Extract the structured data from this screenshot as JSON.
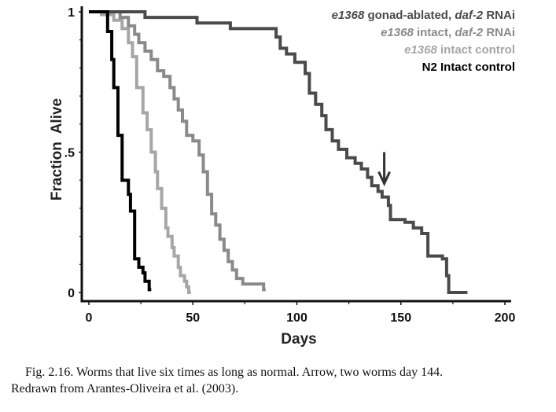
{
  "chart_data": {
    "type": "line",
    "step": true,
    "title": "",
    "xlabel": "Days",
    "ylabel": "Fraction  Alive",
    "xlim": [
      0,
      200
    ],
    "ylim": [
      0,
      1
    ],
    "x_ticks": [
      0,
      50,
      100,
      150,
      200
    ],
    "x_minor_ticks": [
      25,
      75,
      125,
      175
    ],
    "x_tick_labels": [
      "0",
      "50",
      "100",
      "150",
      "200"
    ],
    "y_ticks": [
      0,
      0.5,
      1
    ],
    "y_minor_ticks": [
      0.1,
      0.2,
      0.3,
      0.4,
      0.6,
      0.7,
      0.8,
      0.9
    ],
    "y_tick_labels": [
      "0",
      ".5",
      "1"
    ],
    "grid": false,
    "legend_position": "top-right",
    "series": [
      {
        "name": "e1368 gonad-ablated, daf-2 RNAi",
        "legend_parts": [
          {
            "text": "e1368",
            "italic": true
          },
          {
            "text": " gonad-ablated, ",
            "italic": false
          },
          {
            "text": "daf-2",
            "italic": true
          },
          {
            "text": " RNAi",
            "italic": false
          }
        ],
        "color": "#4a4a4a",
        "x": [
          0,
          27,
          27,
          52,
          52,
          68,
          68,
          90,
          90,
          92,
          92,
          95,
          95,
          99,
          99,
          104,
          104,
          106,
          106,
          109,
          109,
          112,
          112,
          114,
          114,
          117,
          117,
          120,
          120,
          124,
          124,
          128,
          128,
          131,
          131,
          134,
          134,
          136,
          136,
          139,
          139,
          141,
          141,
          144,
          144,
          145,
          145,
          152,
          152,
          156,
          156,
          160,
          160,
          163,
          163,
          170,
          170,
          172,
          172,
          173,
          173,
          182
        ],
        "y": [
          1,
          1,
          0.98,
          0.98,
          0.96,
          0.96,
          0.94,
          0.94,
          0.91,
          0.91,
          0.87,
          0.87,
          0.85,
          0.85,
          0.82,
          0.82,
          0.78,
          0.78,
          0.71,
          0.71,
          0.67,
          0.67,
          0.63,
          0.63,
          0.58,
          0.58,
          0.54,
          0.54,
          0.51,
          0.51,
          0.48,
          0.48,
          0.46,
          0.46,
          0.44,
          0.44,
          0.41,
          0.41,
          0.38,
          0.38,
          0.36,
          0.36,
          0.34,
          0.34,
          0.31,
          0.31,
          0.26,
          0.26,
          0.25,
          0.25,
          0.23,
          0.23,
          0.21,
          0.21,
          0.13,
          0.13,
          0.12,
          0.12,
          0.06,
          0.06,
          0.0,
          0.0
        ]
      },
      {
        "name": "e1368 intact, daf-2 RNAi",
        "legend_parts": [
          {
            "text": "e1368",
            "italic": true
          },
          {
            "text": " intact, ",
            "italic": false
          },
          {
            "text": "daf-2",
            "italic": true
          },
          {
            "text": " RNAi",
            "italic": false
          }
        ],
        "color": "#8a8a8a",
        "x": [
          0,
          15,
          15,
          19,
          19,
          22,
          22,
          24,
          24,
          27,
          27,
          30,
          30,
          33,
          33,
          36,
          36,
          39,
          39,
          41,
          41,
          43,
          43,
          45,
          45,
          47,
          47,
          50,
          50,
          53,
          53,
          55,
          55,
          57,
          57,
          59,
          59,
          61,
          61,
          63,
          63,
          65,
          65,
          67,
          67,
          69,
          69,
          71,
          71,
          74,
          74,
          84,
          84,
          85
        ],
        "y": [
          1,
          1,
          0.98,
          0.98,
          0.95,
          0.95,
          0.92,
          0.92,
          0.89,
          0.89,
          0.86,
          0.86,
          0.83,
          0.83,
          0.79,
          0.79,
          0.77,
          0.77,
          0.73,
          0.73,
          0.69,
          0.69,
          0.65,
          0.65,
          0.61,
          0.61,
          0.56,
          0.56,
          0.54,
          0.54,
          0.49,
          0.49,
          0.43,
          0.43,
          0.35,
          0.35,
          0.28,
          0.28,
          0.24,
          0.24,
          0.19,
          0.19,
          0.15,
          0.15,
          0.11,
          0.11,
          0.08,
          0.08,
          0.05,
          0.05,
          0.03,
          0.03,
          0.01,
          0.01
        ]
      },
      {
        "name": "e1368 intact control",
        "legend_parts": [
          {
            "text": "e1368",
            "italic": true
          },
          {
            "text": " intact control",
            "italic": false
          }
        ],
        "color": "#a6a6a6",
        "x": [
          0,
          6,
          6,
          12,
          12,
          16,
          16,
          19,
          19,
          21,
          21,
          23,
          23,
          26,
          26,
          28,
          28,
          30,
          30,
          32,
          32,
          33,
          33,
          35,
          35,
          37,
          37,
          38,
          38,
          40,
          40,
          41,
          41,
          43,
          43,
          44,
          44,
          46,
          46,
          47,
          47,
          48,
          48,
          49
        ],
        "y": [
          1,
          1,
          0.99,
          0.99,
          0.97,
          0.97,
          0.94,
          0.94,
          0.89,
          0.89,
          0.84,
          0.84,
          0.73,
          0.73,
          0.64,
          0.64,
          0.58,
          0.58,
          0.5,
          0.5,
          0.43,
          0.43,
          0.37,
          0.37,
          0.3,
          0.3,
          0.23,
          0.23,
          0.2,
          0.2,
          0.16,
          0.16,
          0.13,
          0.13,
          0.09,
          0.09,
          0.06,
          0.06,
          0.04,
          0.04,
          0.02,
          0.02,
          0.0,
          0.0
        ]
      },
      {
        "name": "N2 Intact control",
        "legend_parts": [
          {
            "text": "N2 Intact control",
            "italic": false
          }
        ],
        "color": "#000000",
        "x": [
          0,
          9,
          9,
          11,
          11,
          12,
          12,
          14,
          14,
          16,
          16,
          19,
          19,
          20,
          20,
          22,
          22,
          24,
          24,
          26,
          26,
          27,
          27,
          29,
          29,
          30
        ],
        "y": [
          1,
          1,
          0.93,
          0.93,
          0.83,
          0.83,
          0.73,
          0.73,
          0.56,
          0.56,
          0.4,
          0.4,
          0.35,
          0.35,
          0.29,
          0.29,
          0.12,
          0.12,
          0.09,
          0.09,
          0.07,
          0.07,
          0.04,
          0.04,
          0.01,
          0.01
        ]
      }
    ],
    "annotations": [
      {
        "type": "arrow",
        "x": 142,
        "y": 0.36,
        "direction": "down"
      }
    ]
  },
  "caption": {
    "line1": "Fig. 2.16.  Worms that live six times as long as normal. Arrow, two worms day 144.",
    "line2": "Redrawn from Arantes-Oliveira et al. (2003)."
  }
}
